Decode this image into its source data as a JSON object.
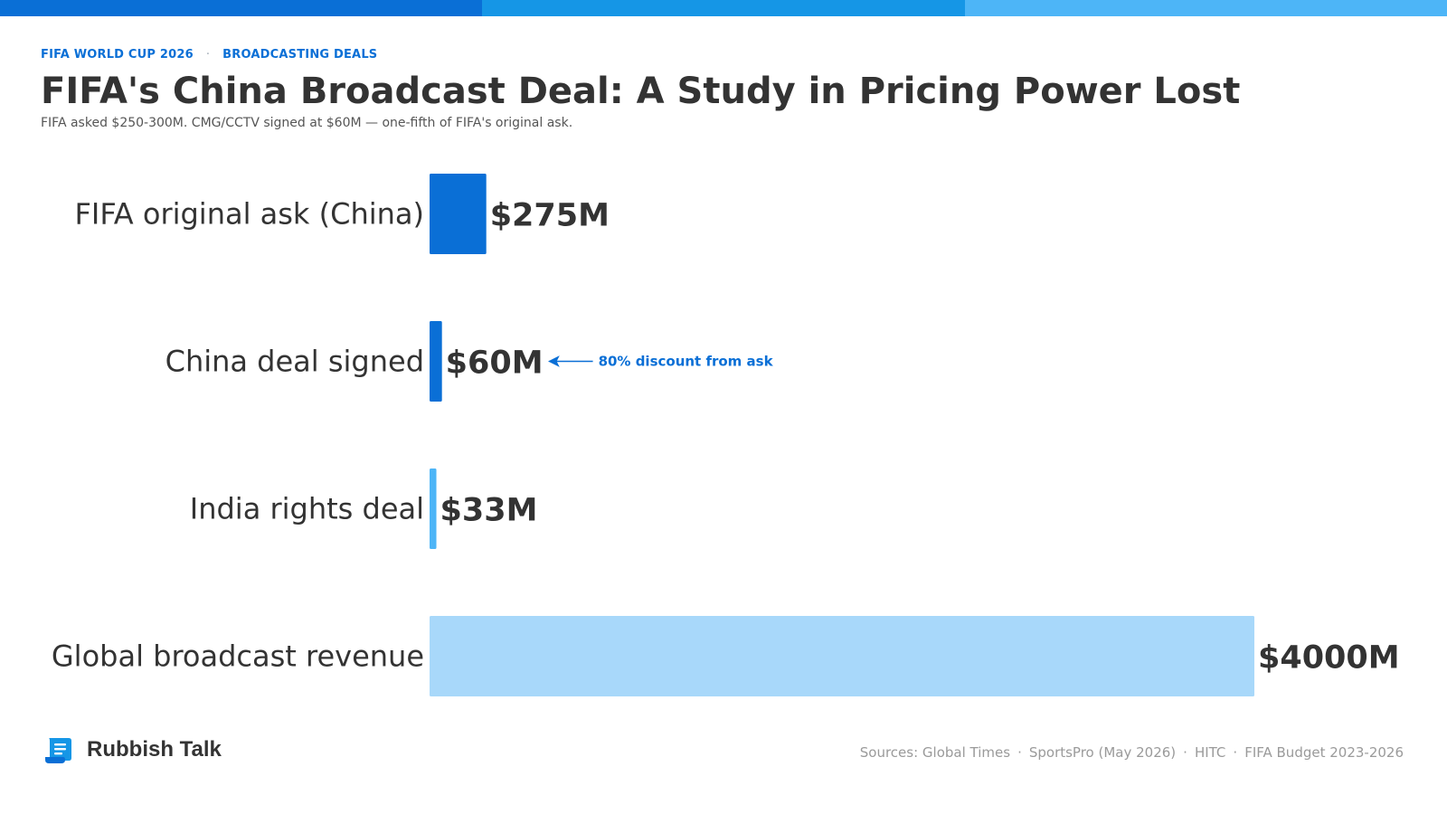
{
  "header": {
    "eyebrow_left": "FIFA WORLD CUP 2026",
    "eyebrow_sep": "·",
    "eyebrow_right": "BROADCASTING DEALS",
    "stripe_colors": [
      "#0a6fd6",
      "#1596e6",
      "#4db5f7"
    ]
  },
  "chart_data": {
    "type": "bar",
    "orientation": "horizontal",
    "title": "FIFA's China Broadcast Deal: A Study in Pricing Power Lost",
    "subtitle": "FIFA asked $250-300M. CMG/CCTV signed at $60M — one-fifth of FIFA's original ask.",
    "categories": [
      "FIFA original ask (China)",
      "China deal signed",
      "India rights deal",
      "Global broadcast revenue"
    ],
    "values": [
      275,
      60,
      33,
      4000
    ],
    "value_labels": [
      "$275M",
      "$60M",
      "$33M",
      "$4000M"
    ],
    "colors": [
      "#0a6fd6",
      "#0a6fd6",
      "#4db5f7",
      "#a8d8fa"
    ],
    "unit": "USD millions",
    "xlim": [
      0,
      4000
    ],
    "grid": false,
    "annotation": {
      "text": "80% discount from ask",
      "category_index": 1,
      "color": "#0a6fd6"
    }
  },
  "footer": {
    "brand": "Rubbish Talk",
    "logo_icon": "scroll-icon",
    "sources": [
      "Sources: Global Times",
      "SportsPro (May 2026)",
      "HITC",
      "FIFA Budget 2023-2026"
    ],
    "sources_sep": "·"
  }
}
